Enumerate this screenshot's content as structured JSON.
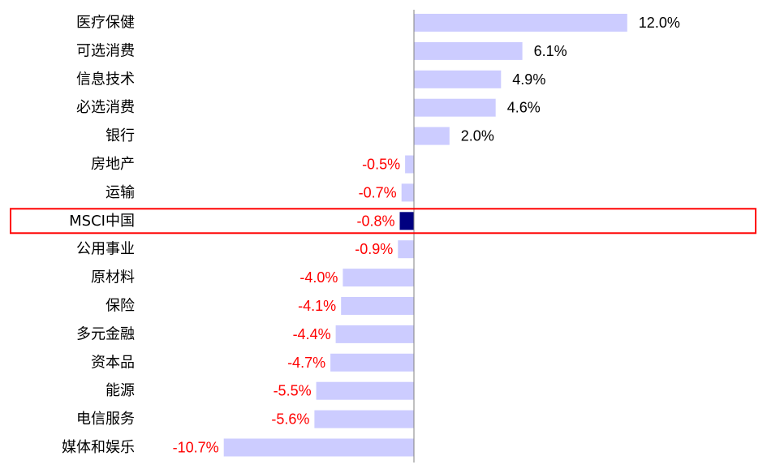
{
  "chart_data": {
    "type": "bar",
    "orientation": "horizontal",
    "categories": [
      "医疗保健",
      "可选消费",
      "信息技术",
      "必选消费",
      "银行",
      "房地产",
      "运输",
      "MSCI中国",
      "公用事业",
      "原材料",
      "保险",
      "多元金融",
      "资本品",
      "能源",
      "电信服务",
      "媒体和娱乐"
    ],
    "values": [
      12.0,
      6.1,
      4.9,
      4.6,
      2.0,
      -0.5,
      -0.7,
      -0.8,
      -0.9,
      -4.0,
      -4.1,
      -4.4,
      -4.7,
      -5.5,
      -5.6,
      -10.7
    ],
    "value_labels": [
      "12.0%",
      "6.1%",
      "4.9%",
      "4.6%",
      "2.0%",
      "-0.5%",
      "-0.7%",
      "-0.8%",
      "-0.9%",
      "-4.0%",
      "-4.1%",
      "-4.4%",
      "-4.7%",
      "-5.5%",
      "-5.6%",
      "-10.7%"
    ],
    "highlight_category": "MSCI中国",
    "title": "",
    "xlabel": "",
    "ylabel": "",
    "xlim": [
      -11.2,
      13.5
    ],
    "grid": false,
    "legend": "none",
    "colors": {
      "bar": "#ccccff",
      "highlight_bar": "#000080",
      "highlight_box": "#ff0000",
      "axis": "#808080",
      "positive_label": "#000000",
      "negative_label": "#ff0000",
      "category_label": "#000000"
    }
  }
}
